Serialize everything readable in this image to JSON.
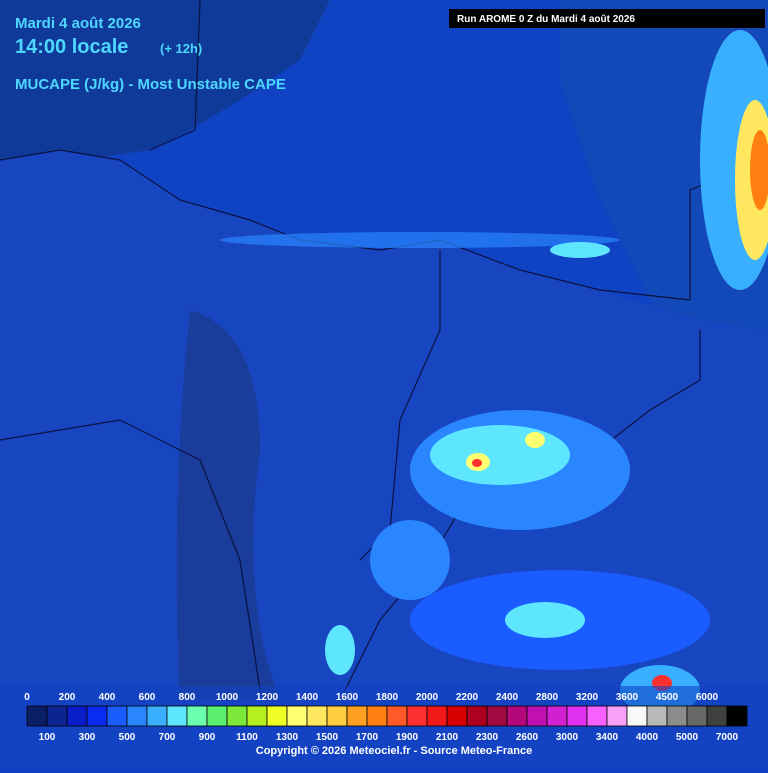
{
  "header": {
    "date": "Mardi 4 août 2026",
    "time": "14:00 locale",
    "lead": "(+ 12h)",
    "parameter": "MUCAPE (J/kg) - Most Unstable CAPE",
    "run": "Run AROME 0 Z du Mardi 4 août 2026"
  },
  "legend": {
    "labels_top": [
      0,
      200,
      400,
      600,
      800,
      1000,
      1200,
      1400,
      1600,
      1800,
      2000,
      2200,
      2400,
      2800,
      3200,
      3600,
      4500,
      6000
    ],
    "labels_bottom": [
      100,
      300,
      500,
      700,
      900,
      1100,
      1300,
      1500,
      1700,
      1900,
      2100,
      2300,
      2600,
      3000,
      3400,
      4000,
      5000,
      7000
    ],
    "colors": [
      "#0a1f66",
      "#0a2590",
      "#0a1ec8",
      "#0a2cf0",
      "#1a5cff",
      "#2a86ff",
      "#38b0ff",
      "#5ee6ff",
      "#6cffb0",
      "#5cf070",
      "#7ce83a",
      "#b4f01e",
      "#f0ff28",
      "#ffff70",
      "#ffe860",
      "#ffcc40",
      "#ffa020",
      "#ff8010",
      "#ff5a28",
      "#ff3030",
      "#f01818",
      "#d80000",
      "#b00020",
      "#a00a40",
      "#b4087a",
      "#c010b0",
      "#d020d0",
      "#e030f0",
      "#f860ff",
      "#f8a0f8",
      "#f8f8f8",
      "#b8b8b8",
      "#8c8c8c",
      "#686868",
      "#404040",
      "#000000"
    ]
  },
  "footer": {
    "copyright": "Copyright © 2026 Meteociel.fr - Source Meteo-France"
  }
}
